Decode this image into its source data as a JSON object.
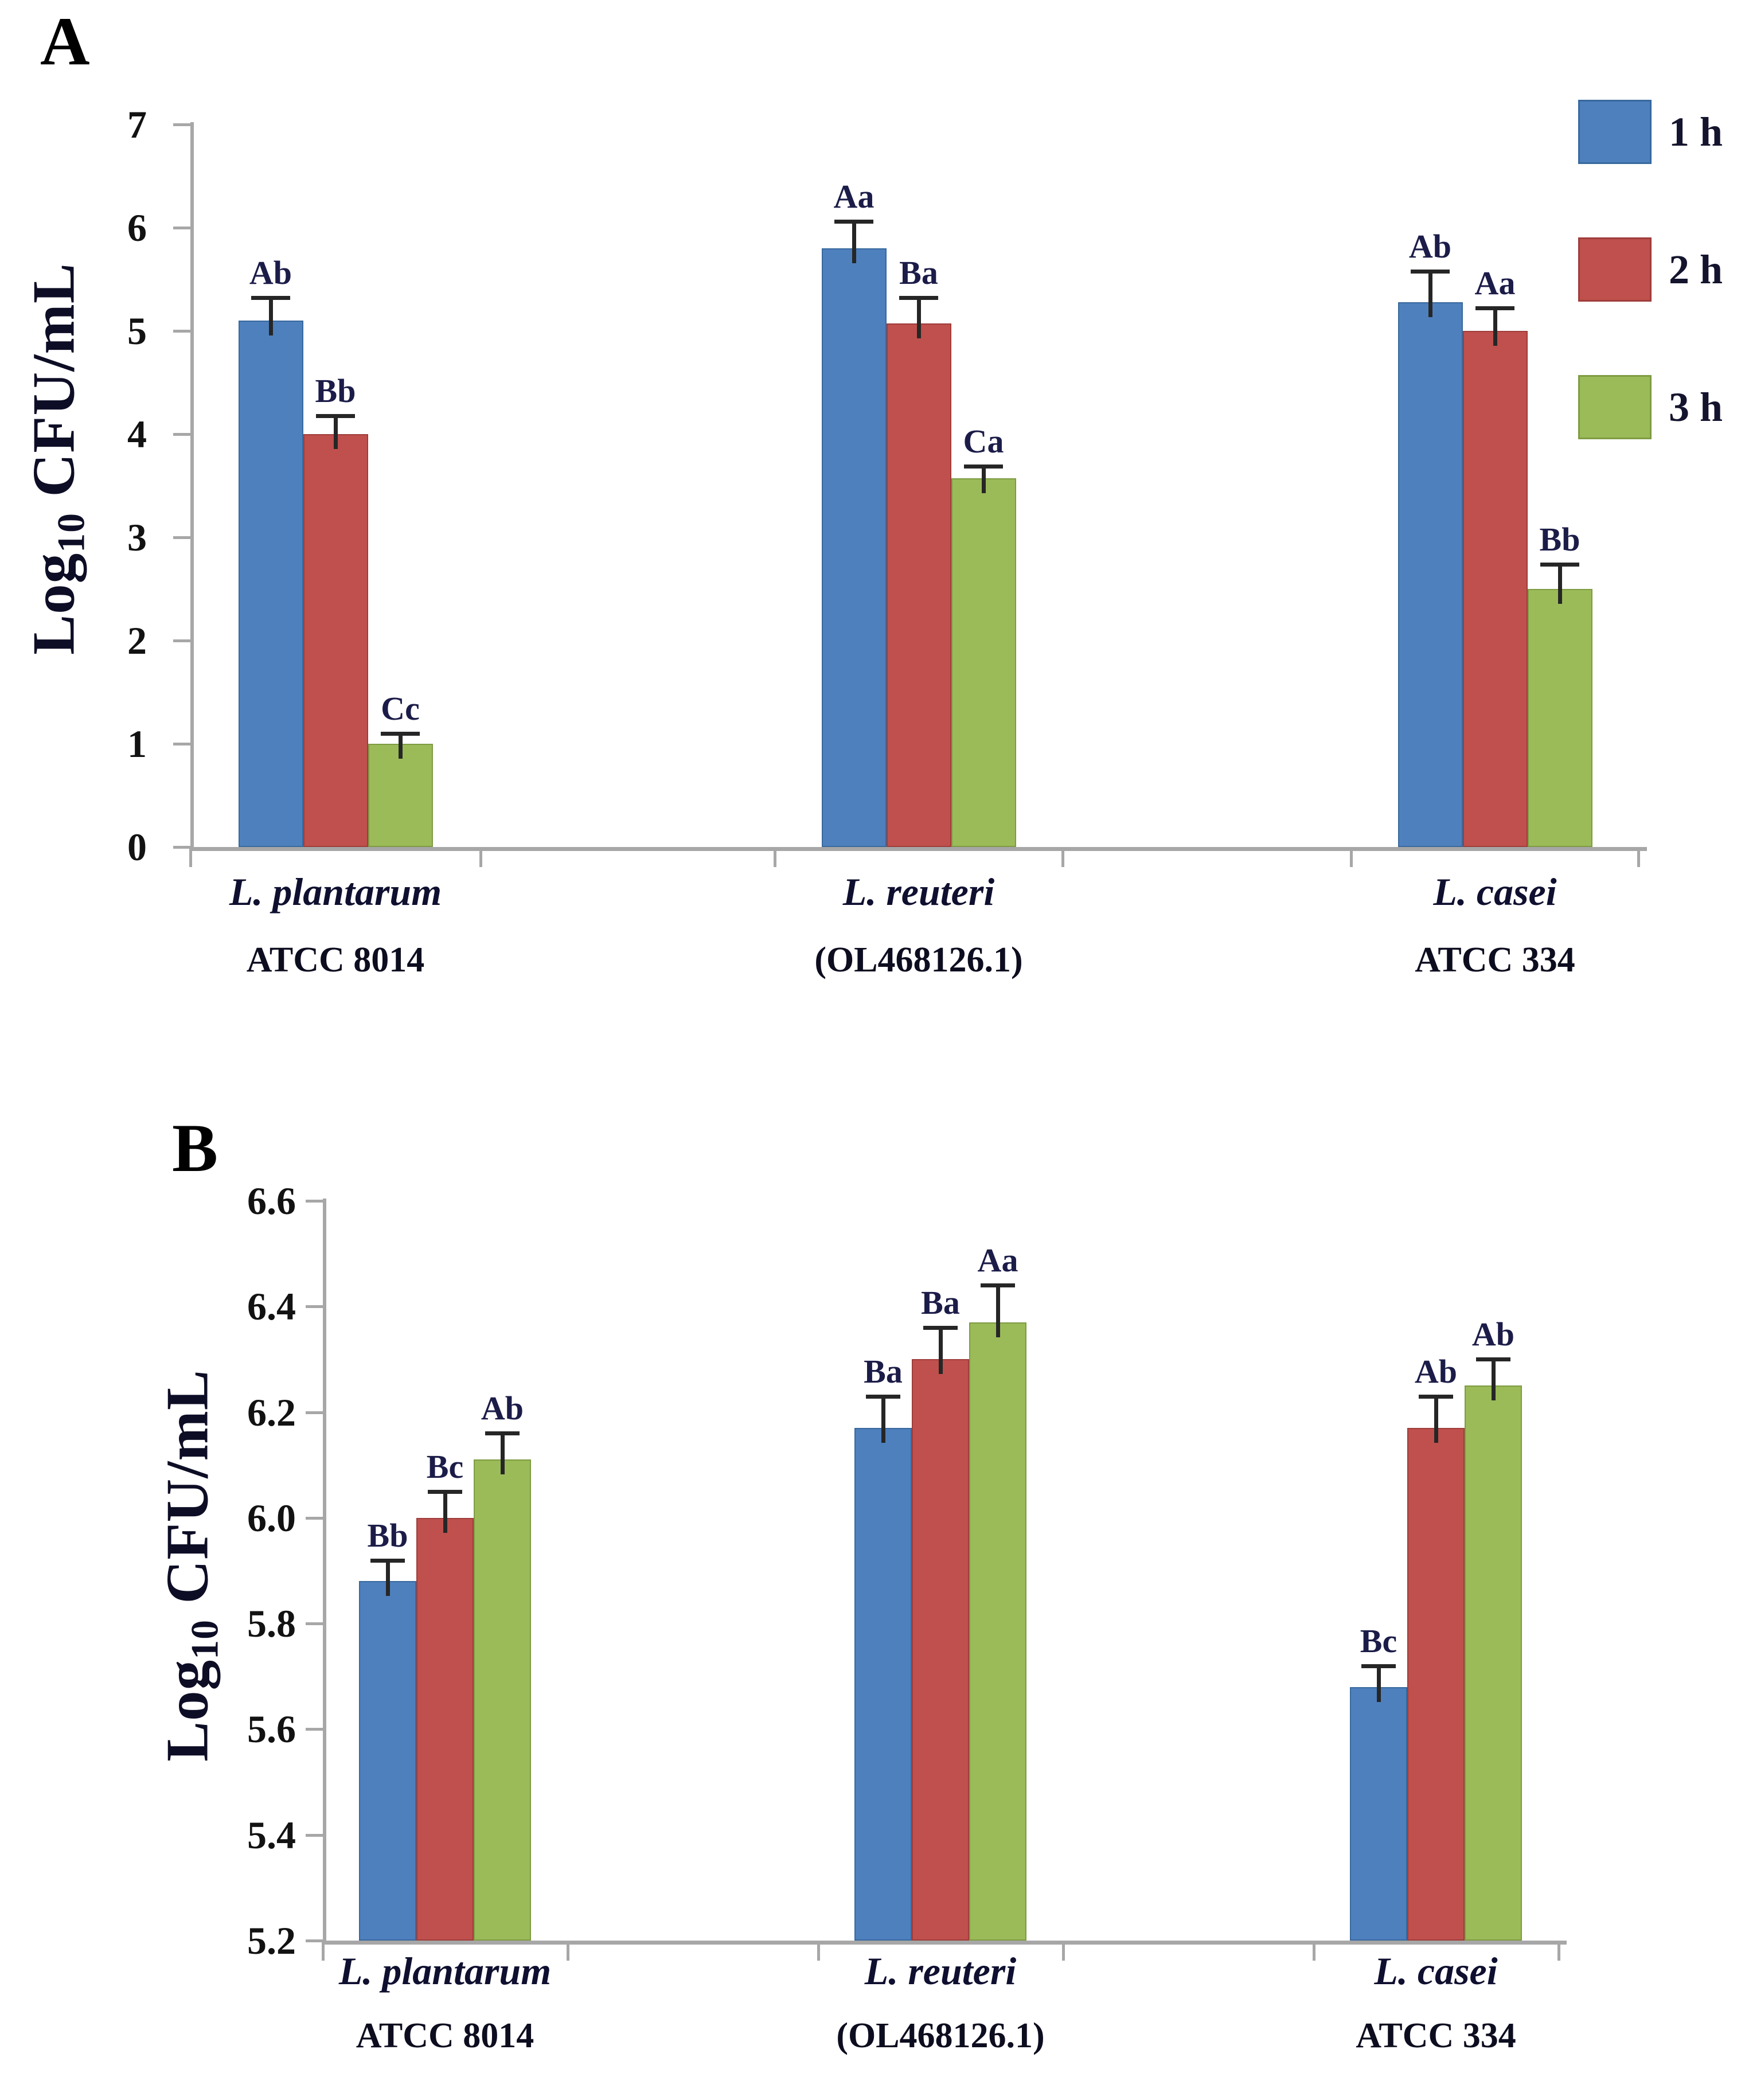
{
  "figure": {
    "background": "#ffffff",
    "axis_color": "#a7a7a7",
    "error_bar_color": "#262626",
    "sig_label_color": "#1c1c49",
    "text_color": "#121212",
    "series_styles": [
      {
        "name": "1 h",
        "color": "#4e80be",
        "border": "#38699e"
      },
      {
        "name": "2 h",
        "color": "#c0504d",
        "border": "#9e3d3b"
      },
      {
        "name": "3 h",
        "color": "#9bbb59",
        "border": "#7e9c43"
      }
    ],
    "legend": {
      "position": "top-right",
      "items": [
        "1 h",
        "2 h",
        "3 h"
      ]
    }
  },
  "chart_data": [
    {
      "panel": "A",
      "type": "bar",
      "title": "",
      "xlabel": "",
      "ylabel": "Log10 CFU/mL",
      "ylabel_parts": {
        "prefix": "Log",
        "sub": "10",
        "suffix": " CFU/mL"
      },
      "ylim": [
        0,
        7
      ],
      "ytick_step": 1,
      "ytick_labels": [
        "7",
        "6",
        "5",
        "4",
        "3",
        "2",
        "1",
        "0"
      ],
      "grid": false,
      "legend_position": "top-right",
      "categories": [
        {
          "line1": "L. plantarum",
          "line2": "ATCC 8014"
        },
        {
          "line1": "L. reuteri",
          "line2": "(OL468126.1)"
        },
        {
          "line1": "L. casei",
          "line2": "ATCC 334"
        }
      ],
      "series": [
        {
          "name": "1 h",
          "values": [
            5.1,
            5.8,
            5.28
          ],
          "errors": [
            0.22,
            0.26,
            0.3
          ],
          "sig_labels": [
            "Ab",
            "Aa",
            "Ab"
          ]
        },
        {
          "name": "2 h",
          "values": [
            4.0,
            5.07,
            5.0
          ],
          "errors": [
            0.18,
            0.25,
            0.22
          ],
          "sig_labels": [
            "Bb",
            "Ba",
            "Aa"
          ]
        },
        {
          "name": "3 h",
          "values": [
            1.0,
            3.57,
            2.5
          ],
          "errors": [
            0.1,
            0.12,
            0.24
          ],
          "sig_labels": [
            "Cc",
            "Ca",
            "Bb"
          ]
        }
      ]
    },
    {
      "panel": "B",
      "type": "bar",
      "title": "",
      "xlabel": "",
      "ylabel": "Log10 CFU/mL",
      "ylabel_parts": {
        "prefix": "Log",
        "sub": "10",
        "suffix": " CFU/mL"
      },
      "ylim": [
        5.2,
        6.6
      ],
      "ytick_step": 0.2,
      "ytick_labels": [
        "6.6",
        "6.4",
        "6.2",
        "6.0",
        "5.8",
        "5.6",
        "5.4",
        "5.2"
      ],
      "grid": false,
      "legend_position": "none",
      "categories": [
        {
          "line1": "L. plantarum",
          "line2": "ATCC 8014"
        },
        {
          "line1": "L. reuteri",
          "line2": "(OL468126.1)"
        },
        {
          "line1": "L. casei",
          "line2": "ATCC 334"
        }
      ],
      "series": [
        {
          "name": "1 h",
          "values": [
            5.88,
            6.17,
            5.68
          ],
          "errors": [
            0.04,
            0.06,
            0.04
          ],
          "sig_labels": [
            "Bb",
            "Ba",
            "Bc"
          ]
        },
        {
          "name": "2 h",
          "values": [
            6.0,
            6.3,
            6.17
          ],
          "errors": [
            0.05,
            0.06,
            0.06
          ],
          "sig_labels": [
            "Bc",
            "Ba",
            "Ab"
          ]
        },
        {
          "name": "3 h",
          "values": [
            6.11,
            6.37,
            6.25
          ],
          "errors": [
            0.05,
            0.07,
            0.05
          ],
          "sig_labels": [
            "Ab",
            "Aa",
            "Ab"
          ]
        }
      ]
    }
  ]
}
